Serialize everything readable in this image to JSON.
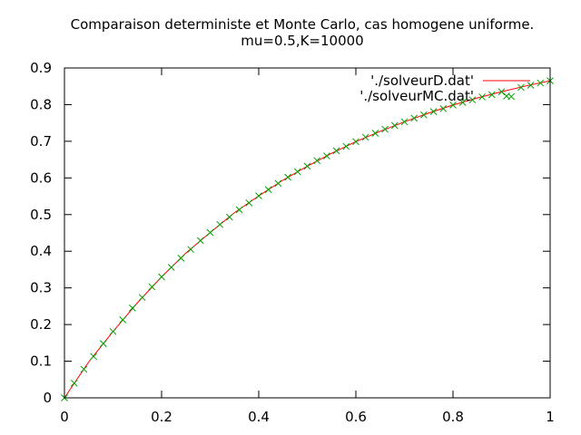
{
  "chart_data": {
    "type": "line",
    "title": [
      "Comparaison deterministe et Monte Carlo, cas homogene uniforme.",
      "mu=0.5,K=10000"
    ],
    "xlabel": "",
    "ylabel": "",
    "xlim": [
      0,
      1
    ],
    "ylim": [
      0,
      0.9
    ],
    "x_ticks": [
      0,
      0.2,
      0.4,
      0.6,
      0.8,
      1
    ],
    "x_tick_labels": [
      "0",
      "0.2",
      "0.4",
      "0.6",
      "0.8",
      "1"
    ],
    "y_ticks": [
      0,
      0.1,
      0.2,
      0.3,
      0.4,
      0.5,
      0.6,
      0.7,
      0.8,
      0.9
    ],
    "y_tick_labels": [
      "0",
      "0.1",
      "0.2",
      "0.3",
      "0.4",
      "0.5",
      "0.6",
      "0.7",
      "0.8",
      "0.9"
    ],
    "grid": false,
    "legend_position": "top-right",
    "series": [
      {
        "name": "'./solveurD.dat'",
        "style": "line",
        "color": "#ff0000",
        "x": [
          0,
          0.05,
          0.1,
          0.15,
          0.2,
          0.25,
          0.3,
          0.35,
          0.4,
          0.45,
          0.5,
          0.55,
          0.6,
          0.65,
          0.7,
          0.75,
          0.8,
          0.85,
          0.9,
          0.95,
          1
        ],
        "y": [
          0,
          0.098,
          0.181,
          0.259,
          0.33,
          0.395,
          0.451,
          0.505,
          0.551,
          0.594,
          0.632,
          0.667,
          0.699,
          0.727,
          0.753,
          0.777,
          0.799,
          0.818,
          0.835,
          0.851,
          0.865
        ]
      },
      {
        "name": "'./solveurMC.dat'",
        "style": "points",
        "marker": "x",
        "color": "#00a000",
        "x": [
          0,
          0.02,
          0.04,
          0.06,
          0.08,
          0.1,
          0.12,
          0.14,
          0.16,
          0.18,
          0.2,
          0.22,
          0.24,
          0.26,
          0.28,
          0.3,
          0.32,
          0.34,
          0.36,
          0.38,
          0.4,
          0.42,
          0.44,
          0.46,
          0.48,
          0.5,
          0.52,
          0.54,
          0.56,
          0.58,
          0.6,
          0.62,
          0.64,
          0.66,
          0.68,
          0.7,
          0.72,
          0.74,
          0.76,
          0.78,
          0.8,
          0.82,
          0.84,
          0.86,
          0.88,
          0.9,
          0.92,
          0.94,
          0.96,
          0.98,
          1
        ],
        "y": [
          0,
          0.04,
          0.078,
          0.113,
          0.148,
          0.181,
          0.213,
          0.245,
          0.274,
          0.303,
          0.33,
          0.356,
          0.381,
          0.405,
          0.429,
          0.451,
          0.473,
          0.493,
          0.513,
          0.532,
          0.551,
          0.568,
          0.585,
          0.602,
          0.617,
          0.632,
          0.647,
          0.66,
          0.674,
          0.686,
          0.699,
          0.711,
          0.722,
          0.733,
          0.743,
          0.753,
          0.763,
          0.772,
          0.781,
          0.789,
          0.799,
          0.806,
          0.813,
          0.821,
          0.827,
          0.835,
          0.822,
          0.847,
          0.853,
          0.859,
          0.865
        ]
      }
    ]
  }
}
